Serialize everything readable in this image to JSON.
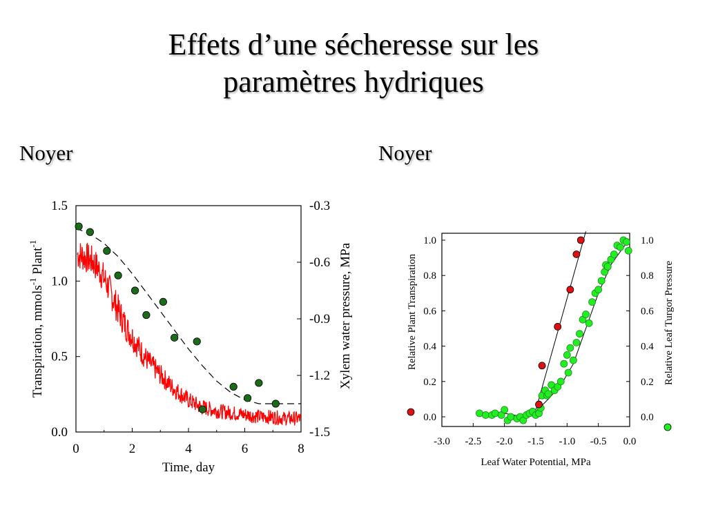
{
  "slide": {
    "title_line1": "Effets d’une sécheresse sur les",
    "title_line2": "paramètres hydriques",
    "left_heading": "Noyer",
    "right_heading": "Noyer"
  },
  "colors": {
    "red": "#ff0000",
    "dark_green": "#1a6b1a",
    "light_green": "#22ee22",
    "marker_red": "#dd1111"
  },
  "chart_data": [
    {
      "type": "line",
      "xlabel": "Time, day",
      "ylabel_left": "Transpiration, mmols-1  Plant-1",
      "ylabel_right": "Xylem water pressure, MPa",
      "xlim": [
        0,
        8
      ],
      "ylim_left": [
        0,
        1.5
      ],
      "ylim_right": [
        -1.5,
        -0.3
      ],
      "x_ticks": [
        "0",
        "2",
        "4",
        "6",
        "8"
      ],
      "y_left_ticks": [
        "0.0",
        "0.5",
        "1.0",
        "1.5"
      ],
      "y_right_ticks": [
        "-1.5",
        "-1.2",
        "-0.9",
        "-0.6",
        "-0.3"
      ],
      "series": [
        {
          "style": "red noisy line",
          "x": [
            0,
            0.2,
            0.4,
            0.6,
            0.8,
            1.0,
            1.2,
            1.4,
            1.6,
            1.8,
            2.0,
            2.2,
            2.4,
            2.6,
            2.8,
            3.0,
            3.2,
            3.4,
            3.6,
            3.8,
            4.0,
            4.2,
            4.4,
            4.6,
            4.8,
            5.0,
            5.4,
            5.8,
            6.2,
            6.6,
            7.0,
            7.4,
            7.8,
            8.0
          ],
          "y": [
            1.18,
            1.17,
            1.15,
            1.13,
            1.08,
            1.02,
            0.94,
            0.85,
            0.77,
            0.69,
            0.63,
            0.57,
            0.51,
            0.46,
            0.42,
            0.38,
            0.34,
            0.3,
            0.27,
            0.24,
            0.21,
            0.19,
            0.17,
            0.16,
            0.15,
            0.14,
            0.13,
            0.12,
            0.11,
            0.1,
            0.1,
            0.09,
            0.09,
            0.09
          ]
        },
        {
          "style": "dashed fit (right axis)",
          "x": [
            0,
            0.5,
            1.0,
            1.5,
            2.0,
            2.5,
            3.0,
            3.5,
            4.0,
            4.5,
            5.0,
            5.5,
            6.0,
            6.5,
            7.0,
            7.5,
            8.0
          ],
          "y": [
            -0.42,
            -0.45,
            -0.5,
            -0.57,
            -0.66,
            -0.76,
            -0.86,
            -0.96,
            -1.06,
            -1.15,
            -1.23,
            -1.29,
            -1.33,
            -1.35,
            -1.35,
            -1.35,
            -1.35
          ]
        },
        {
          "style": "dark green points (right axis)",
          "x": [
            0.1,
            0.5,
            1.1,
            1.5,
            2.1,
            2.5,
            3.1,
            3.5,
            4.3,
            4.5,
            5.6,
            6.1,
            6.5,
            7.1
          ],
          "y": [
            -0.41,
            -0.44,
            -0.54,
            -0.67,
            -0.75,
            -0.88,
            -0.81,
            -1.0,
            -1.02,
            -1.38,
            -1.26,
            -1.32,
            -1.24,
            -1.35
          ]
        }
      ]
    },
    {
      "type": "scatter",
      "xlabel": "Leaf Water Potential, MPa",
      "ylabel_left": "Relative Plant Transpiration",
      "ylabel_right": "Relative Leaf Turgor Pressure",
      "xlim": [
        -3.0,
        0.0
      ],
      "ylim": [
        0.0,
        1.0
      ],
      "x_ticks": [
        "-3.0",
        "-2.5",
        "-2.0",
        "-1.5",
        "-1.0",
        "-0.5",
        "0.0"
      ],
      "y_left_ticks": [
        "0.0",
        "0.2",
        "0.4",
        "0.6",
        "0.8",
        "1.0"
      ],
      "y_right_ticks": [
        "0.0",
        "0.2",
        "0.4",
        "0.6",
        "0.8",
        "1.0"
      ],
      "series": [
        {
          "marker": "red",
          "x": [
            -1.45,
            -1.4,
            -1.15,
            -0.95,
            -0.85,
            -0.78
          ],
          "y": [
            0.07,
            0.29,
            0.51,
            0.72,
            0.92,
            1.0
          ],
          "fit_x": [
            -1.53,
            -0.7
          ],
          "fit_y": [
            0.0,
            1.05
          ]
        },
        {
          "marker": "green",
          "x": [
            -2.4,
            -2.3,
            -2.2,
            -2.15,
            -2.05,
            -2.0,
            -1.95,
            -1.9,
            -1.8,
            -1.75,
            -1.7,
            -1.65,
            -1.6,
            -1.55,
            -1.5,
            -1.45,
            -1.42,
            -1.4,
            -1.35,
            -1.32,
            -1.3,
            -1.25,
            -1.2,
            -1.15,
            -1.1,
            -1.05,
            -1.0,
            -0.98,
            -0.95,
            -0.9,
            -0.85,
            -0.8,
            -0.75,
            -0.7,
            -0.65,
            -0.6,
            -0.55,
            -0.5,
            -0.45,
            -0.4,
            -0.38,
            -0.35,
            -0.3,
            -0.25,
            -0.2,
            -0.15,
            -0.1,
            -0.05,
            -0.02
          ],
          "y": [
            0.02,
            0.01,
            0.01,
            0.02,
            0.01,
            0.04,
            -0.02,
            0.0,
            -0.01,
            0.0,
            -0.02,
            0.01,
            0.02,
            0.03,
            0.01,
            0.02,
            0.05,
            0.12,
            0.15,
            0.12,
            0.13,
            0.18,
            0.15,
            0.17,
            0.2,
            0.3,
            0.35,
            0.25,
            0.39,
            0.32,
            0.42,
            0.47,
            0.55,
            0.58,
            0.53,
            0.65,
            0.7,
            0.72,
            0.77,
            0.82,
            0.86,
            0.85,
            0.89,
            0.92,
            0.97,
            0.96,
            1.0,
            0.99,
            0.94
          ],
          "fit_x": [
            -2.45,
            -2.0,
            -1.7,
            -1.5,
            -1.3,
            -1.1,
            -0.9,
            -0.7,
            -0.5,
            -0.3,
            -0.1,
            0.0
          ],
          "fit_y": [
            0.02,
            0.02,
            0.0,
            0.03,
            0.1,
            0.18,
            0.3,
            0.5,
            0.7,
            0.86,
            0.96,
            1.0
          ]
        }
      ]
    }
  ]
}
